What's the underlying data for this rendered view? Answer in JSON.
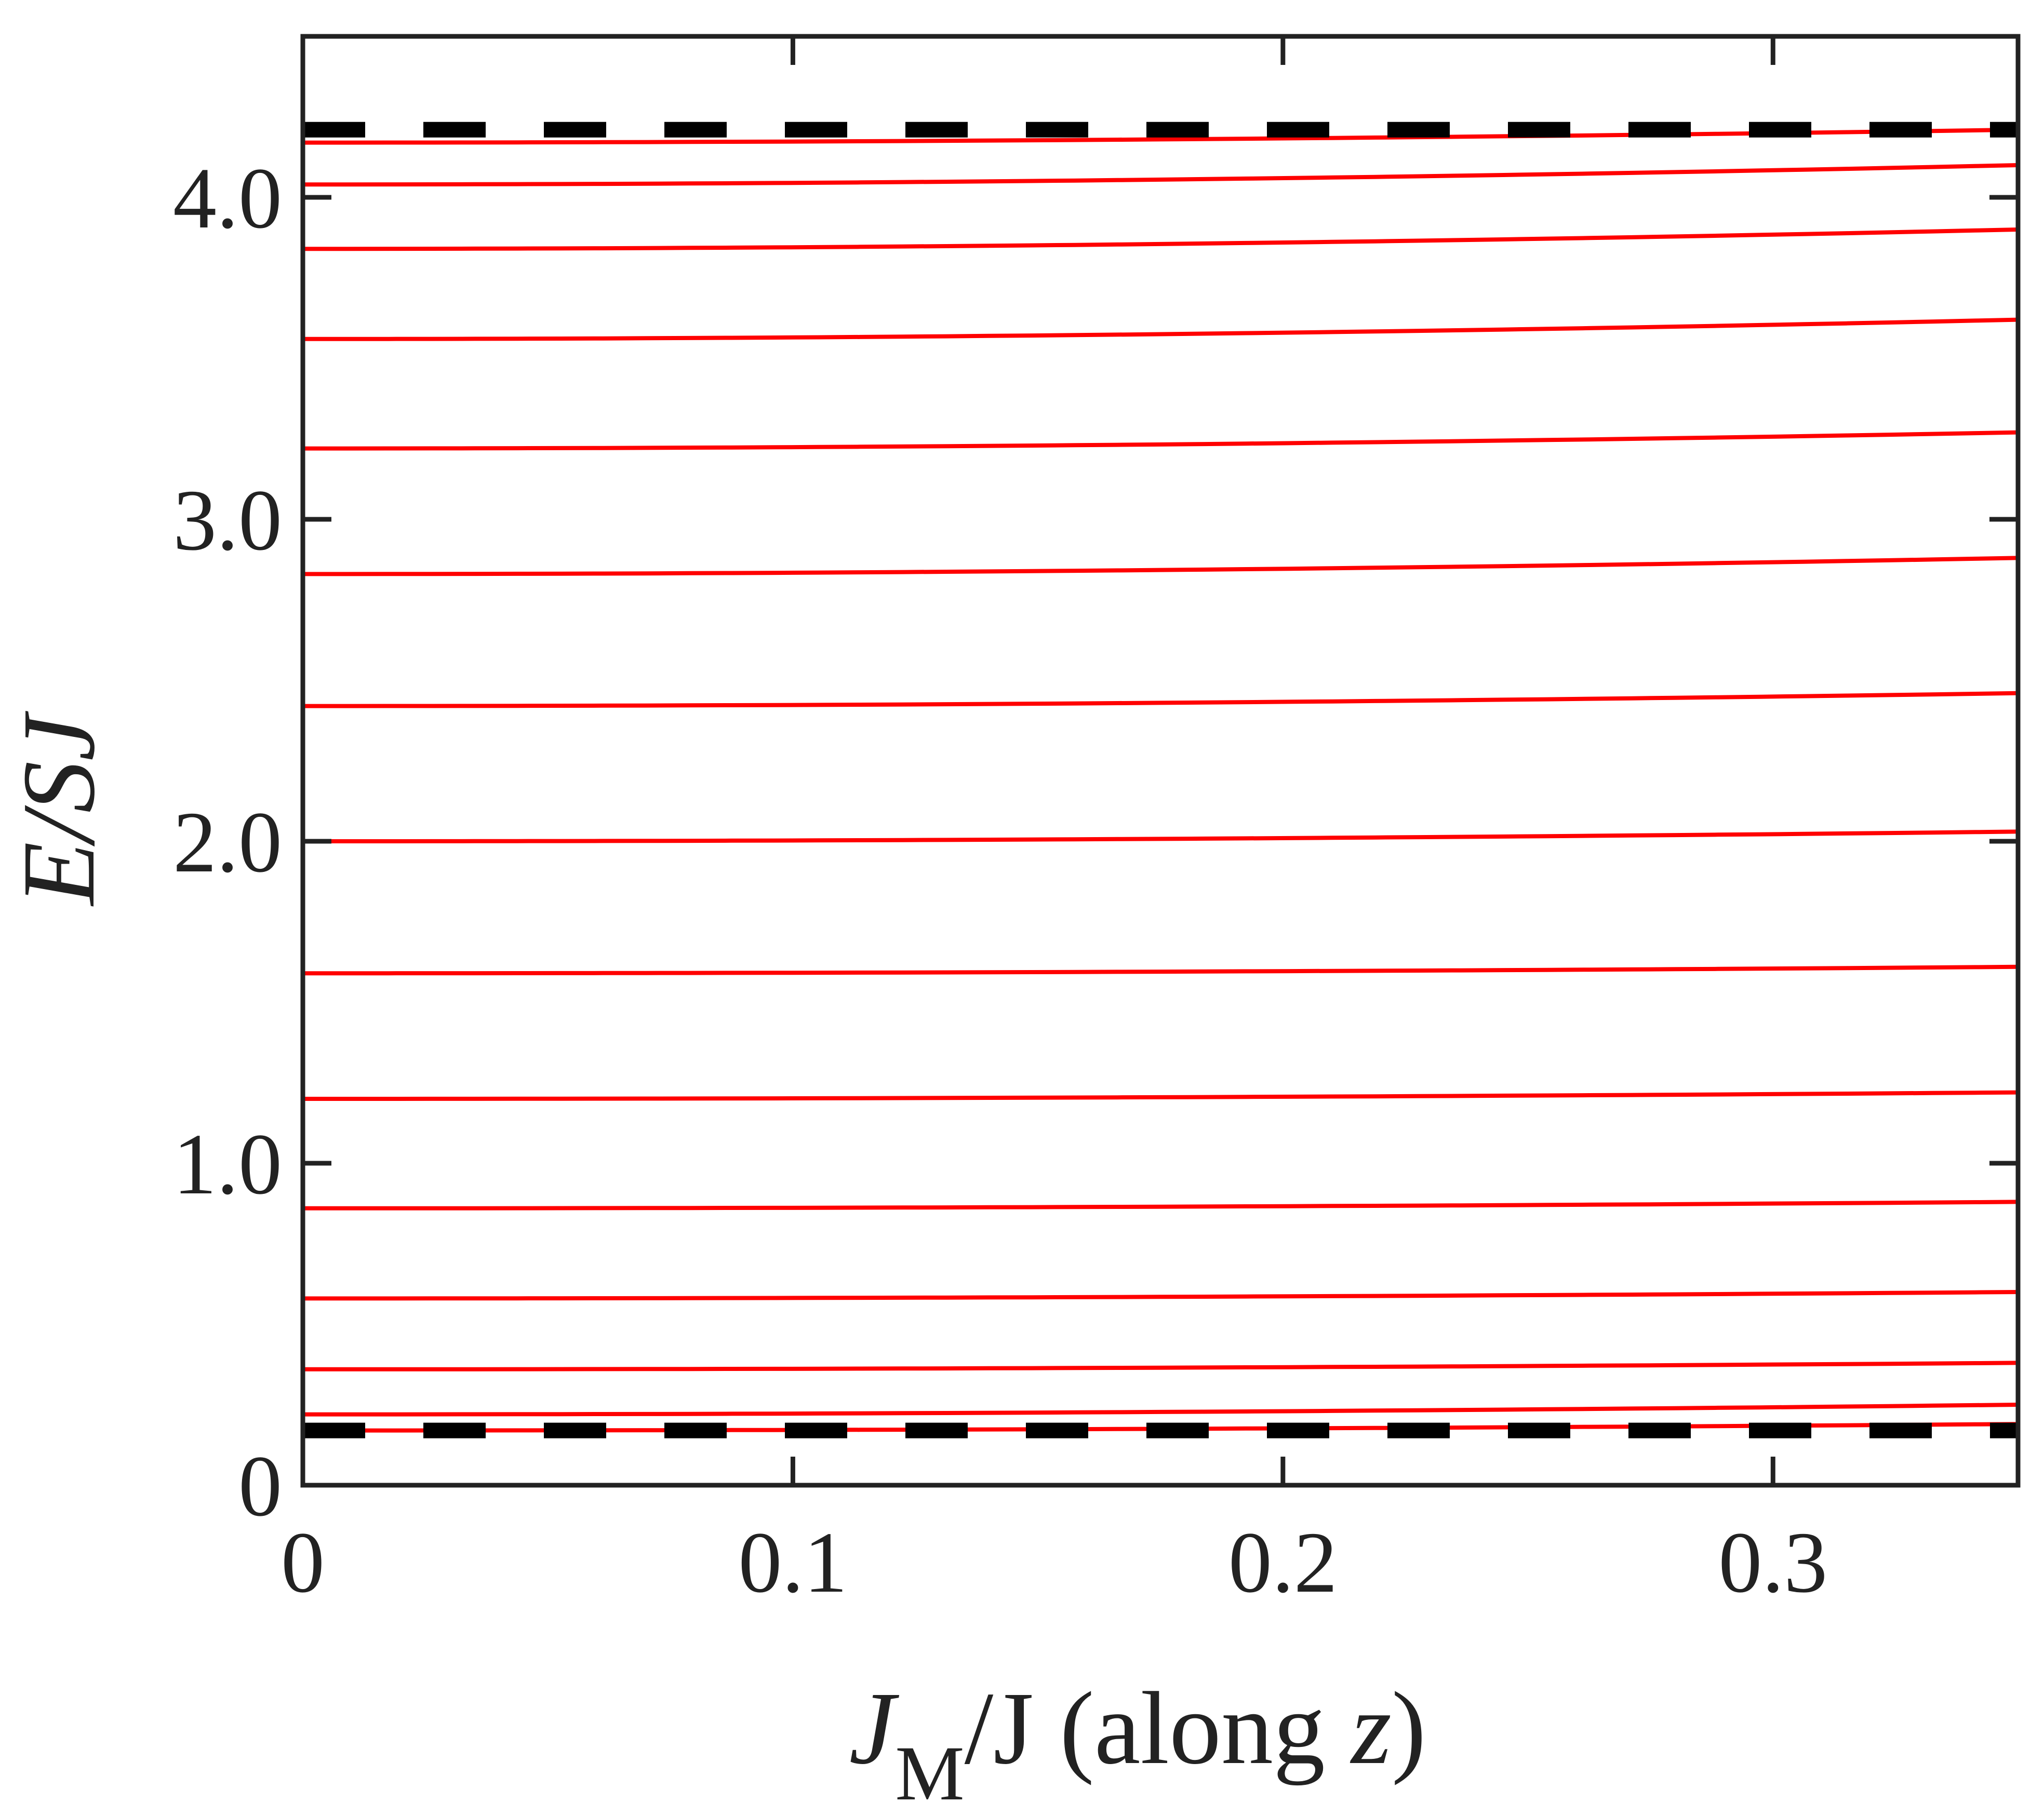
{
  "chart_data": {
    "type": "line",
    "xlabel": {
      "main": "J",
      "sub": "M",
      "rest": "/J (along ",
      "var": "z",
      "close": ")"
    },
    "ylabel": "E/SJ",
    "xlim": [
      0,
      0.35
    ],
    "ylim": [
      0,
      4.5
    ],
    "xticks": [
      0,
      0.1,
      0.2,
      0.3
    ],
    "xtick_labels": [
      "0",
      "0.1",
      "0.2",
      "0.3"
    ],
    "yticks": [
      0,
      1,
      2,
      3,
      4
    ],
    "ytick_labels": [
      "0",
      "1.0",
      "2.0",
      "3.0",
      "4.0"
    ],
    "grid": false,
    "line_color": "#ff0000",
    "bound_color": "#000000",
    "x": [
      0,
      0.35
    ],
    "series": [
      {
        "values": [
          0.17,
          0.19
        ]
      },
      {
        "values": [
          0.22,
          0.25
        ]
      },
      {
        "values": [
          0.36,
          0.38
        ]
      },
      {
        "values": [
          0.58,
          0.6
        ]
      },
      {
        "values": [
          0.86,
          0.88
        ]
      },
      {
        "values": [
          1.2,
          1.22
        ]
      },
      {
        "values": [
          1.59,
          1.61
        ]
      },
      {
        "values": [
          2.0,
          2.03
        ]
      },
      {
        "values": [
          2.42,
          2.46
        ]
      },
      {
        "values": [
          2.83,
          2.88
        ]
      },
      {
        "values": [
          3.22,
          3.27
        ]
      },
      {
        "values": [
          3.56,
          3.62
        ]
      },
      {
        "values": [
          3.84,
          3.9
        ]
      },
      {
        "values": [
          4.04,
          4.1
        ]
      },
      {
        "values": [
          4.17,
          4.21
        ]
      }
    ],
    "bounds": [
      {
        "style": "dashed",
        "value": 0.17
      },
      {
        "style": "dashed",
        "value": 4.21
      }
    ]
  }
}
